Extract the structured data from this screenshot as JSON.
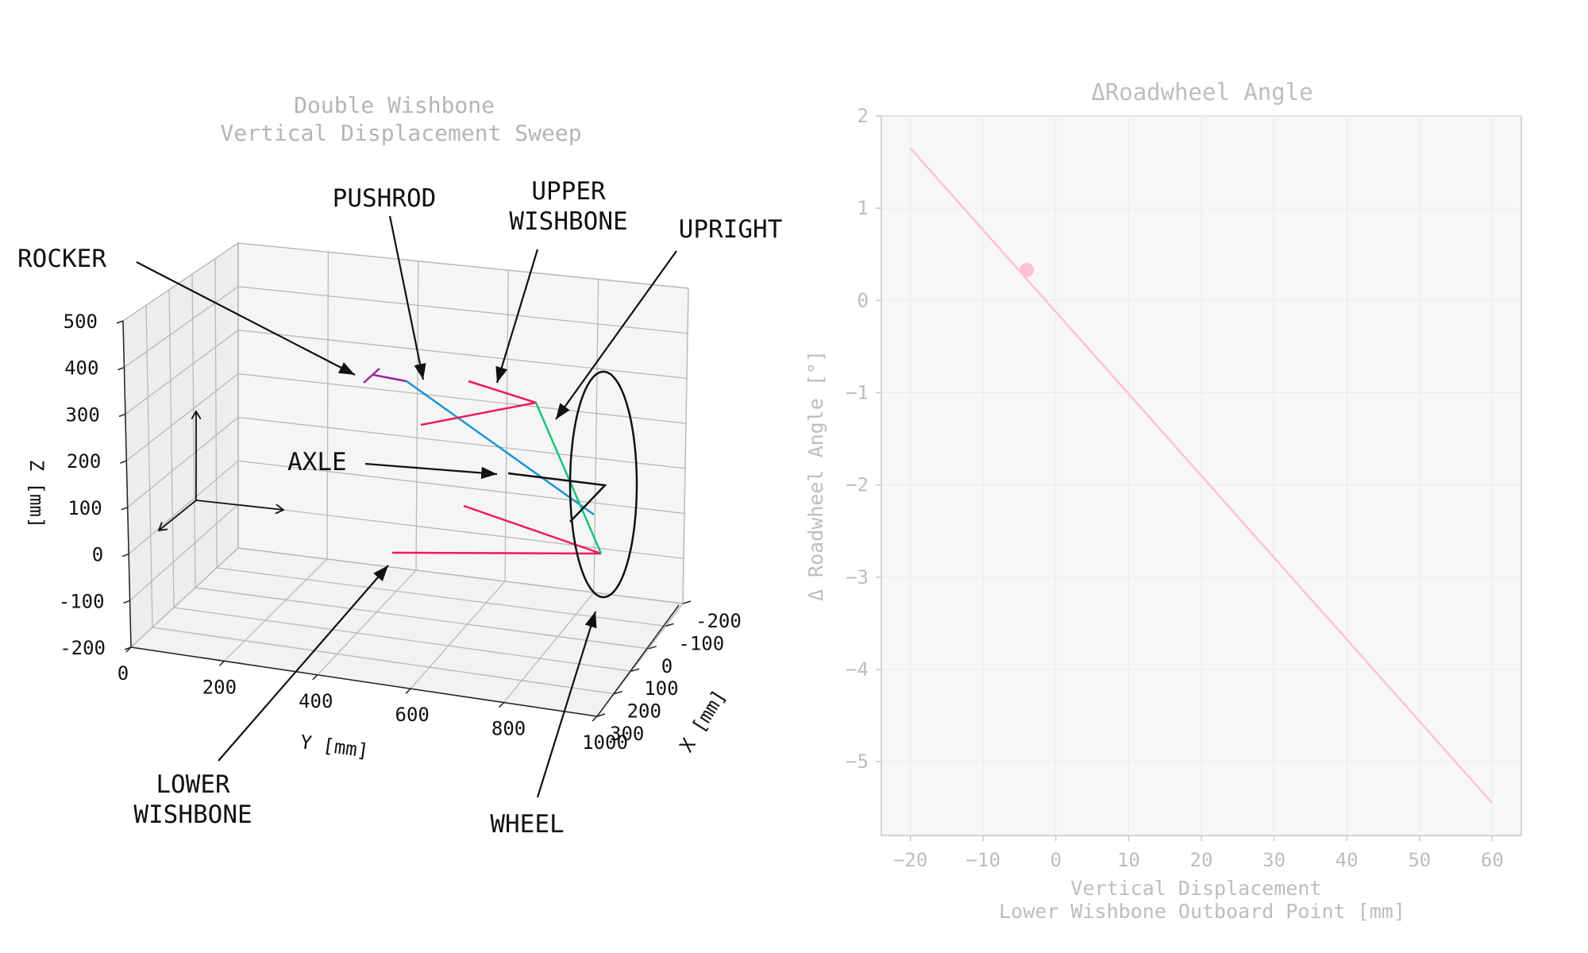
{
  "chart_data": [
    {
      "type": "3d-line",
      "title": "Double Wishbone\nVertical Displacement Sweep",
      "xlabel": "X [mm]",
      "ylabel": "Y [mm]",
      "zlabel": "Z [mm]",
      "x_ticks": [
        "-200",
        "-100",
        "0",
        "100",
        "200",
        "300"
      ],
      "y_ticks": [
        "0",
        "200",
        "400",
        "600",
        "800",
        "1000"
      ],
      "z_ticks": [
        "500",
        "400",
        "300",
        "200",
        "100",
        "0",
        "-100",
        "-200"
      ],
      "colors": {
        "rocker": "#a0239e",
        "pushrod": "#1a93d6",
        "upper_wishbone": "#f0195a",
        "lower_wishbone": "#f0195a",
        "upright": "#18c27a",
        "wheel": "#111111",
        "axle": "#111111"
      },
      "annotations": [
        {
          "key": "rocker",
          "lines": [
            "ROCKER"
          ]
        },
        {
          "key": "pushrod",
          "lines": [
            "PUSHROD"
          ]
        },
        {
          "key": "upper_wishbone",
          "lines": [
            "UPPER",
            "WISHBONE"
          ]
        },
        {
          "key": "upright",
          "lines": [
            "UPRIGHT"
          ]
        },
        {
          "key": "axle",
          "lines": [
            "AXLE"
          ]
        },
        {
          "key": "lower_wishbone",
          "lines": [
            "LOWER",
            "WISHBONE"
          ]
        },
        {
          "key": "wheel",
          "lines": [
            "WHEEL"
          ]
        }
      ]
    },
    {
      "type": "line",
      "title": "ΔRoadwheel Angle",
      "xlabel": "Vertical Displacement\nLower Wishbone Outboard Point [mm]",
      "ylabel": "Δ Roadwheel Angle [°]",
      "xlim": [
        -24,
        64
      ],
      "ylim": [
        -5.8,
        2
      ],
      "x_ticks": [
        -20,
        -10,
        0,
        10,
        20,
        30,
        40,
        50,
        60
      ],
      "y_ticks": [
        2,
        1,
        0,
        -1,
        -2,
        -3,
        -4,
        -5
      ],
      "series": [
        {
          "x": [
            -20,
            60
          ],
          "y": [
            1.65,
            -5.45
          ]
        }
      ],
      "marker": {
        "x": -4,
        "y": 0.33
      },
      "line_color": "#ffc0d6",
      "grid": true,
      "background": "#f7f7f7"
    }
  ]
}
